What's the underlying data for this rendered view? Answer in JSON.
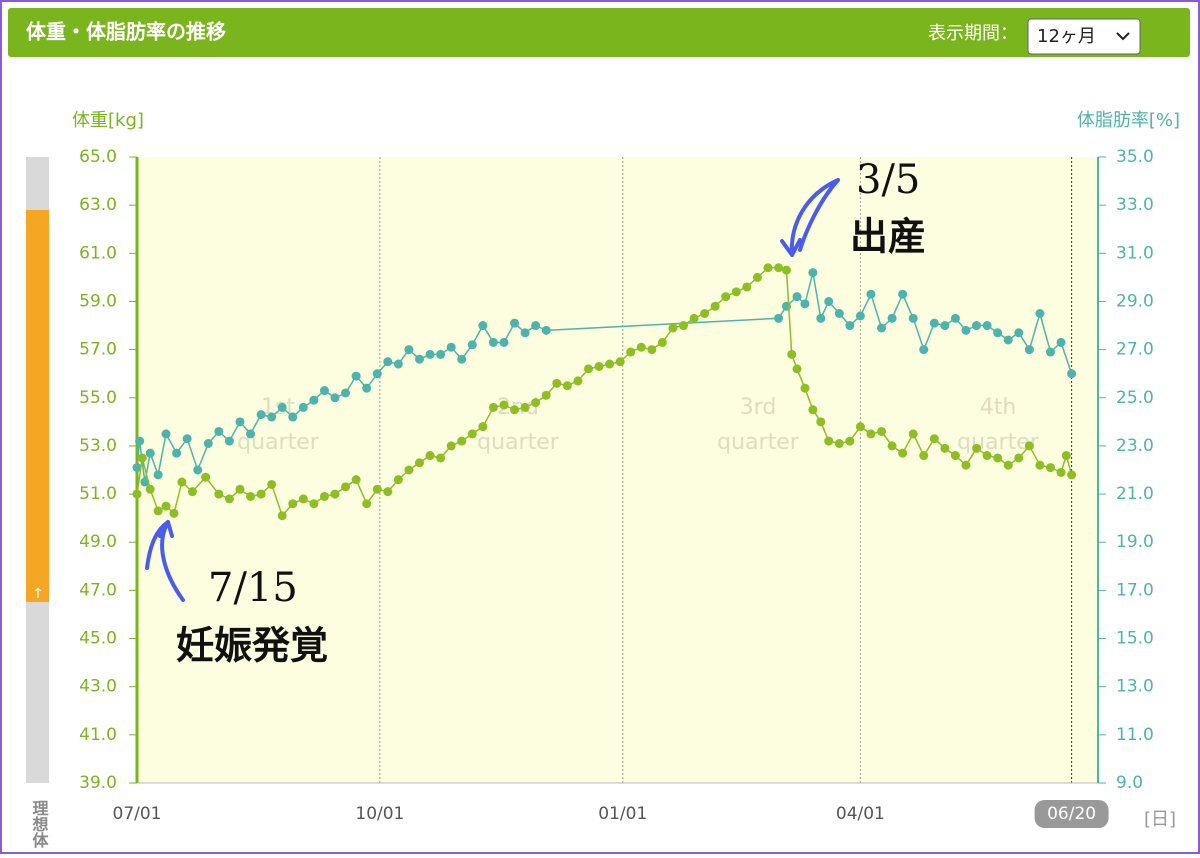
{
  "chart_data": {
    "type": "line",
    "title": "体重・体脂肪率の推移",
    "period_label": "表示期間：",
    "period_value": "12ヶ月",
    "y_label": "体重[kg]",
    "y2_label": "体脂肪率[%]",
    "x_unit": "[日]",
    "ideal_label": "理想体",
    "xlim": [
      "07/01",
      "06/30"
    ],
    "xticks": [
      "07/01",
      "10/01",
      "01/01",
      "04/01",
      "06/20"
    ],
    "ylim": [
      39,
      65
    ],
    "yticks": [
      {
        "value": 39,
        "label": "39.0"
      },
      {
        "value": 41,
        "label": "41.0"
      },
      {
        "value": 43,
        "label": "43.0"
      },
      {
        "value": 45,
        "label": "45.0"
      },
      {
        "value": 47,
        "label": "47.0"
      },
      {
        "value": 49,
        "label": "49.0"
      },
      {
        "value": 51,
        "label": "51.0"
      },
      {
        "value": 53,
        "label": "53.0"
      },
      {
        "value": 55,
        "label": "55.0"
      },
      {
        "value": 57,
        "label": "57.0"
      },
      {
        "value": 59,
        "label": "59.0"
      },
      {
        "value": 61,
        "label": "61.0"
      },
      {
        "value": 63,
        "label": "63.0"
      },
      {
        "value": 65,
        "label": "65.0"
      }
    ],
    "y2lim": [
      9,
      35
    ],
    "y2ticks": [
      {
        "value": 9,
        "label": "9.0"
      },
      {
        "value": 11,
        "label": "11.0"
      },
      {
        "value": 13,
        "label": "13.0"
      },
      {
        "value": 15,
        "label": "15.0"
      },
      {
        "value": 17,
        "label": "17.0"
      },
      {
        "value": 19,
        "label": "19.0"
      },
      {
        "value": 21,
        "label": "21.0"
      },
      {
        "value": 23,
        "label": "23.0"
      },
      {
        "value": 25,
        "label": "25.0"
      },
      {
        "value": 27,
        "label": "27.0"
      },
      {
        "value": 29,
        "label": "29.0"
      },
      {
        "value": 31,
        "label": "31.0"
      },
      {
        "value": 33,
        "label": "33.0"
      },
      {
        "value": 35,
        "label": "35.0"
      }
    ],
    "quarter_labels": [
      [
        "1st",
        "quarter"
      ],
      [
        "2nd",
        "quarter"
      ],
      [
        "3rd",
        "quarter"
      ],
      [
        "4th",
        "quarter"
      ]
    ],
    "annotations": [
      {
        "date": "7/15",
        "label": "妊娠発覚"
      },
      {
        "date": "3/5",
        "label": "出産"
      }
    ],
    "series": [
      {
        "name": "体脂肪率",
        "axis": "y2",
        "color": "#4db3ad",
        "x": [
          "07/01",
          "07/02",
          "07/04",
          "07/06",
          "07/09",
          "07/12",
          "07/16",
          "07/20",
          "07/24",
          "07/28",
          "08/01",
          "08/05",
          "08/09",
          "08/13",
          "08/17",
          "08/21",
          "08/25",
          "08/29",
          "09/02",
          "09/06",
          "09/10",
          "09/14",
          "09/18",
          "09/22",
          "09/26",
          "09/30",
          "10/04",
          "10/08",
          "10/12",
          "10/16",
          "10/20",
          "10/24",
          "10/28",
          "11/01",
          "11/05",
          "11/09",
          "11/13",
          "11/17",
          "11/21",
          "11/25",
          "11/29",
          "12/03",
          "03/01",
          "03/04",
          "03/08",
          "03/11",
          "03/14",
          "03/17",
          "03/20",
          "03/24",
          "03/28",
          "04/01",
          "04/05",
          "04/09",
          "04/13",
          "04/17",
          "04/21",
          "04/25",
          "04/29",
          "05/03",
          "05/07",
          "05/11",
          "05/15",
          "05/19",
          "05/23",
          "05/27",
          "05/31",
          "06/04",
          "06/08",
          "06/12",
          "06/16",
          "06/20"
        ],
        "values": [
          22.1,
          23.2,
          21.5,
          22.7,
          21.8,
          23.5,
          22.7,
          23.3,
          22.0,
          23.1,
          23.6,
          23.2,
          24.0,
          23.5,
          24.3,
          24.2,
          24.6,
          24.2,
          24.6,
          24.9,
          25.3,
          25.0,
          25.2,
          25.9,
          25.4,
          26.0,
          26.5,
          26.4,
          27.0,
          26.6,
          26.8,
          26.8,
          27.1,
          26.6,
          27.2,
          28.0,
          27.3,
          27.3,
          28.1,
          27.7,
          28.0,
          27.8,
          28.3,
          28.8,
          29.2,
          28.9,
          30.2,
          28.3,
          29.0,
          28.5,
          28.0,
          28.4,
          29.3,
          27.9,
          28.3,
          29.3,
          28.3,
          27.0,
          28.1,
          28.0,
          28.3,
          27.8,
          28.0,
          28.0,
          27.7,
          27.4,
          27.7,
          27.0,
          28.5,
          26.9,
          27.3,
          26.0
        ]
      },
      {
        "name": "体重",
        "axis": "y",
        "color": "#8dbf22",
        "x": [
          "07/01",
          "07/03",
          "07/06",
          "07/09",
          "07/12",
          "07/15",
          "07/18",
          "07/22",
          "07/27",
          "08/01",
          "08/05",
          "08/09",
          "08/13",
          "08/17",
          "08/21",
          "08/25",
          "08/29",
          "09/02",
          "09/06",
          "09/10",
          "09/14",
          "09/18",
          "09/22",
          "09/26",
          "09/30",
          "10/04",
          "10/08",
          "10/12",
          "10/16",
          "10/20",
          "10/24",
          "10/28",
          "11/01",
          "11/05",
          "11/09",
          "11/13",
          "11/17",
          "11/21",
          "11/25",
          "11/29",
          "12/03",
          "12/07",
          "12/11",
          "12/15",
          "12/19",
          "12/23",
          "12/27",
          "12/31",
          "01/04",
          "01/08",
          "01/12",
          "01/16",
          "01/20",
          "01/24",
          "01/28",
          "02/01",
          "02/05",
          "02/09",
          "02/13",
          "02/17",
          "02/21",
          "02/25",
          "03/01",
          "03/04",
          "03/06",
          "03/08",
          "03/11",
          "03/14",
          "03/17",
          "03/20",
          "03/24",
          "03/28",
          "04/01",
          "04/05",
          "04/09",
          "04/13",
          "04/17",
          "04/21",
          "04/25",
          "04/29",
          "05/03",
          "05/07",
          "05/11",
          "05/15",
          "05/19",
          "05/23",
          "05/27",
          "05/31",
          "06/04",
          "06/08",
          "06/12",
          "06/16",
          "06/18",
          "06/20"
        ],
        "values": [
          51.0,
          52.5,
          51.2,
          50.3,
          50.5,
          50.2,
          51.5,
          51.1,
          51.7,
          51.0,
          50.8,
          51.2,
          50.9,
          51.0,
          51.4,
          50.1,
          50.6,
          50.8,
          50.6,
          50.9,
          51.0,
          51.3,
          51.6,
          50.6,
          51.2,
          51.1,
          51.6,
          52.0,
          52.3,
          52.6,
          52.5,
          53.0,
          53.2,
          53.5,
          53.8,
          54.6,
          54.7,
          54.5,
          54.6,
          54.8,
          55.1,
          55.6,
          55.5,
          55.7,
          56.2,
          56.3,
          56.4,
          56.5,
          56.9,
          57.1,
          57.0,
          57.3,
          57.9,
          58.0,
          58.3,
          58.5,
          58.8,
          59.2,
          59.4,
          59.6,
          60.0,
          60.4,
          60.4,
          60.3,
          56.8,
          56.2,
          55.4,
          54.5,
          54.0,
          53.2,
          53.1,
          53.2,
          53.8,
          53.5,
          53.6,
          53.0,
          52.7,
          53.5,
          52.6,
          53.3,
          52.9,
          52.6,
          52.2,
          52.9,
          52.6,
          52.5,
          52.2,
          52.5,
          53.0,
          52.2,
          52.1,
          51.9,
          52.6,
          51.8
        ]
      }
    ]
  }
}
